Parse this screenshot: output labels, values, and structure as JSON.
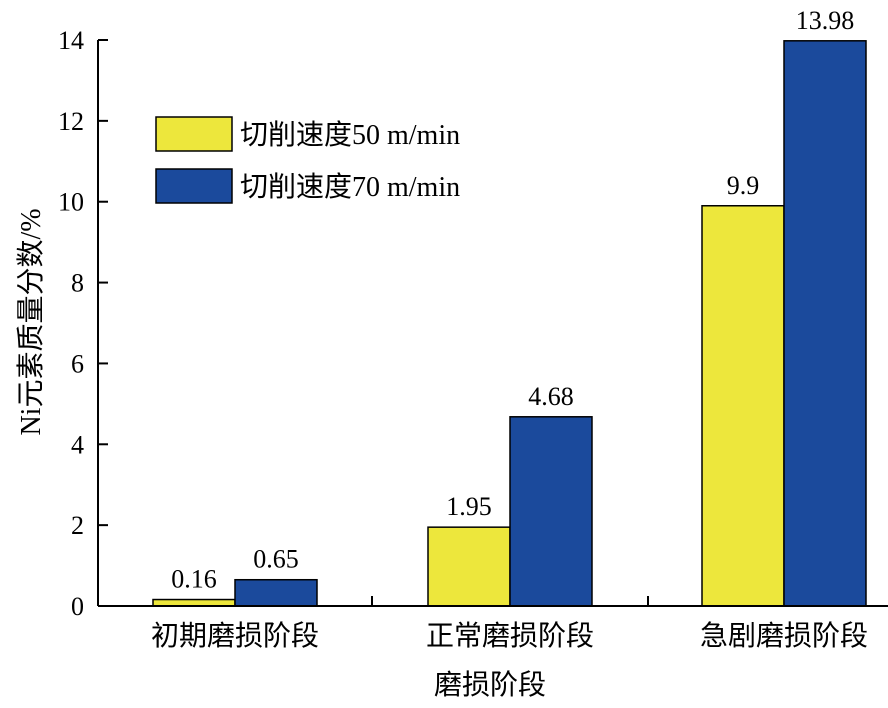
{
  "chart_data": {
    "type": "bar",
    "title": "",
    "xlabel": "",
    "ylabel": "Ni元素质量分数/%",
    "ylim": [
      0,
      14
    ],
    "yticks": [
      0,
      2,
      4,
      6,
      8,
      10,
      12,
      14
    ],
    "categories": [
      "初期磨损阶段",
      "正常磨损阶段",
      "急剧磨损阶段"
    ],
    "extra_category_text": "磨损阶段",
    "series": [
      {
        "name": "切削速度50 m/min",
        "color": "#ede73c",
        "values": [
          0.16,
          1.95,
          9.9
        ],
        "labels": [
          "0.16",
          "1.95",
          "9.9"
        ]
      },
      {
        "name": "切削速度70 m/min",
        "color": "#1b4a9c",
        "values": [
          0.65,
          4.68,
          13.98
        ],
        "labels": [
          "0.65",
          "4.68",
          "13.98"
        ]
      }
    ],
    "legend": "top-left",
    "grid": false
  }
}
